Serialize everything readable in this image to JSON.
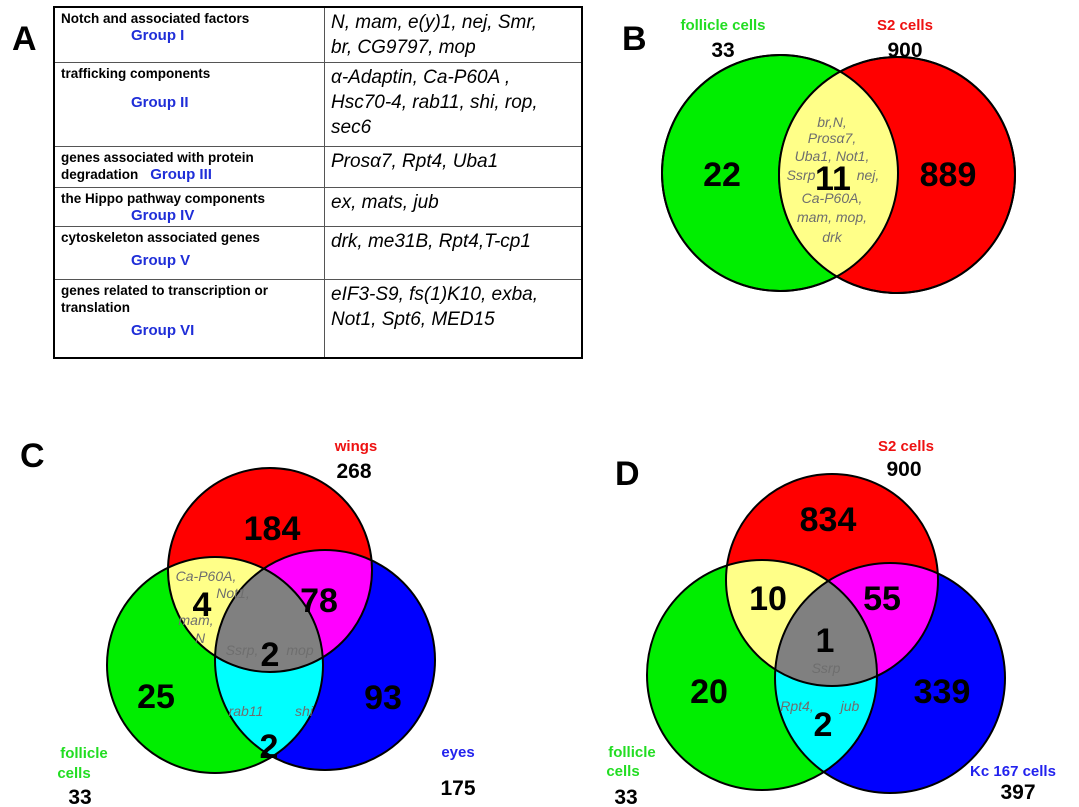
{
  "panel_labels": {
    "a": "A",
    "b": "B",
    "c": "C",
    "d": "D"
  },
  "table": {
    "rows": [
      {
        "category": "Notch and associated factors",
        "group": "Group I",
        "genes": [
          "N, mam, e(y)1, nej, Smr,",
          "br, CG9797, mop"
        ]
      },
      {
        "category": "trafficking components",
        "group": "Group II",
        "genes": [
          "α-Adaptin, Ca-P60A ,",
          "Hsc70-4, rab11, shi, rop,",
          "sec6"
        ]
      },
      {
        "category": "genes associated with protein degradation",
        "group": "Group III",
        "genes": [
          "Prosα7, Rpt4, Uba1"
        ]
      },
      {
        "category": "the Hippo pathway components",
        "group": "Group IV",
        "genes": [
          "ex, mats, jub"
        ]
      },
      {
        "category": "cytoskeleton associated genes",
        "group": "Group V",
        "genes": [
          "drk, me31B, Rpt4,T-cp1"
        ]
      },
      {
        "category": "genes related to transcription or translation",
        "group": "Group VI",
        "genes": [
          "eIF3-S9, fs(1)K10, exba,",
          "Not1, Spt6, MED15"
        ]
      }
    ]
  },
  "venn_b": {
    "sets": [
      {
        "name": "follicle cells",
        "total": "33",
        "color": "#00ee00"
      },
      {
        "name": "S2 cells",
        "total": "900",
        "color": "#ff0000"
      }
    ],
    "regions": {
      "follicle_only": "22",
      "overlap": "11",
      "s2_only": "889"
    },
    "overlap_genes": [
      "br,N,",
      "Prosα7,",
      "Uba1, Not1,",
      "Ssrp",
      "nej,",
      "Ca-P60A,",
      "mam, mop,",
      "drk"
    ],
    "overlap_color": "#ffff88"
  },
  "venn_c": {
    "sets": [
      {
        "name": "wings",
        "total": "268",
        "color": "#ff0000"
      },
      {
        "name_lines": [
          "follicle",
          "cells"
        ],
        "total": "33",
        "color": "#00ee00"
      },
      {
        "name": "eyes",
        "total": "175",
        "color": "#0000ff"
      }
    ],
    "regions": {
      "wings_only": "184",
      "follicle_only": "25",
      "eyes_only": "93",
      "wings_follicle": "4",
      "wings_eyes": "78",
      "follicle_eyes": "2",
      "all": "2"
    },
    "genes_wings_follicle": [
      "Ca-P60A,",
      "Not1,",
      "mam,",
      "N"
    ],
    "genes_all": [
      "Ssrp,",
      "mop"
    ],
    "genes_follicle_eyes": [
      "rab11",
      "shi"
    ],
    "colors": {
      "yellow": "#ffff88",
      "magenta": "#ff00ff",
      "cyan": "#00ffff",
      "gray": "#808080"
    }
  },
  "venn_d": {
    "sets": [
      {
        "name": "S2 cells",
        "total": "900",
        "color": "#ff0000"
      },
      {
        "name_lines": [
          "follicle",
          "cells"
        ],
        "total": "33",
        "color": "#00ee00"
      },
      {
        "name": "Kc 167 cells",
        "total": "397",
        "color": "#0000ff"
      }
    ],
    "regions": {
      "s2_only": "834",
      "follicle_only": "20",
      "kc_only": "339",
      "s2_follicle": "10",
      "s2_kc": "55",
      "follicle_kc": "2",
      "all": "1"
    },
    "genes_all": [
      "Ssrp"
    ],
    "genes_follicle_kc": [
      "Rpt4,",
      "jub"
    ],
    "colors": {
      "yellow": "#ffff88",
      "magenta": "#ff00ff",
      "cyan": "#00ffff",
      "gray": "#808080"
    }
  }
}
